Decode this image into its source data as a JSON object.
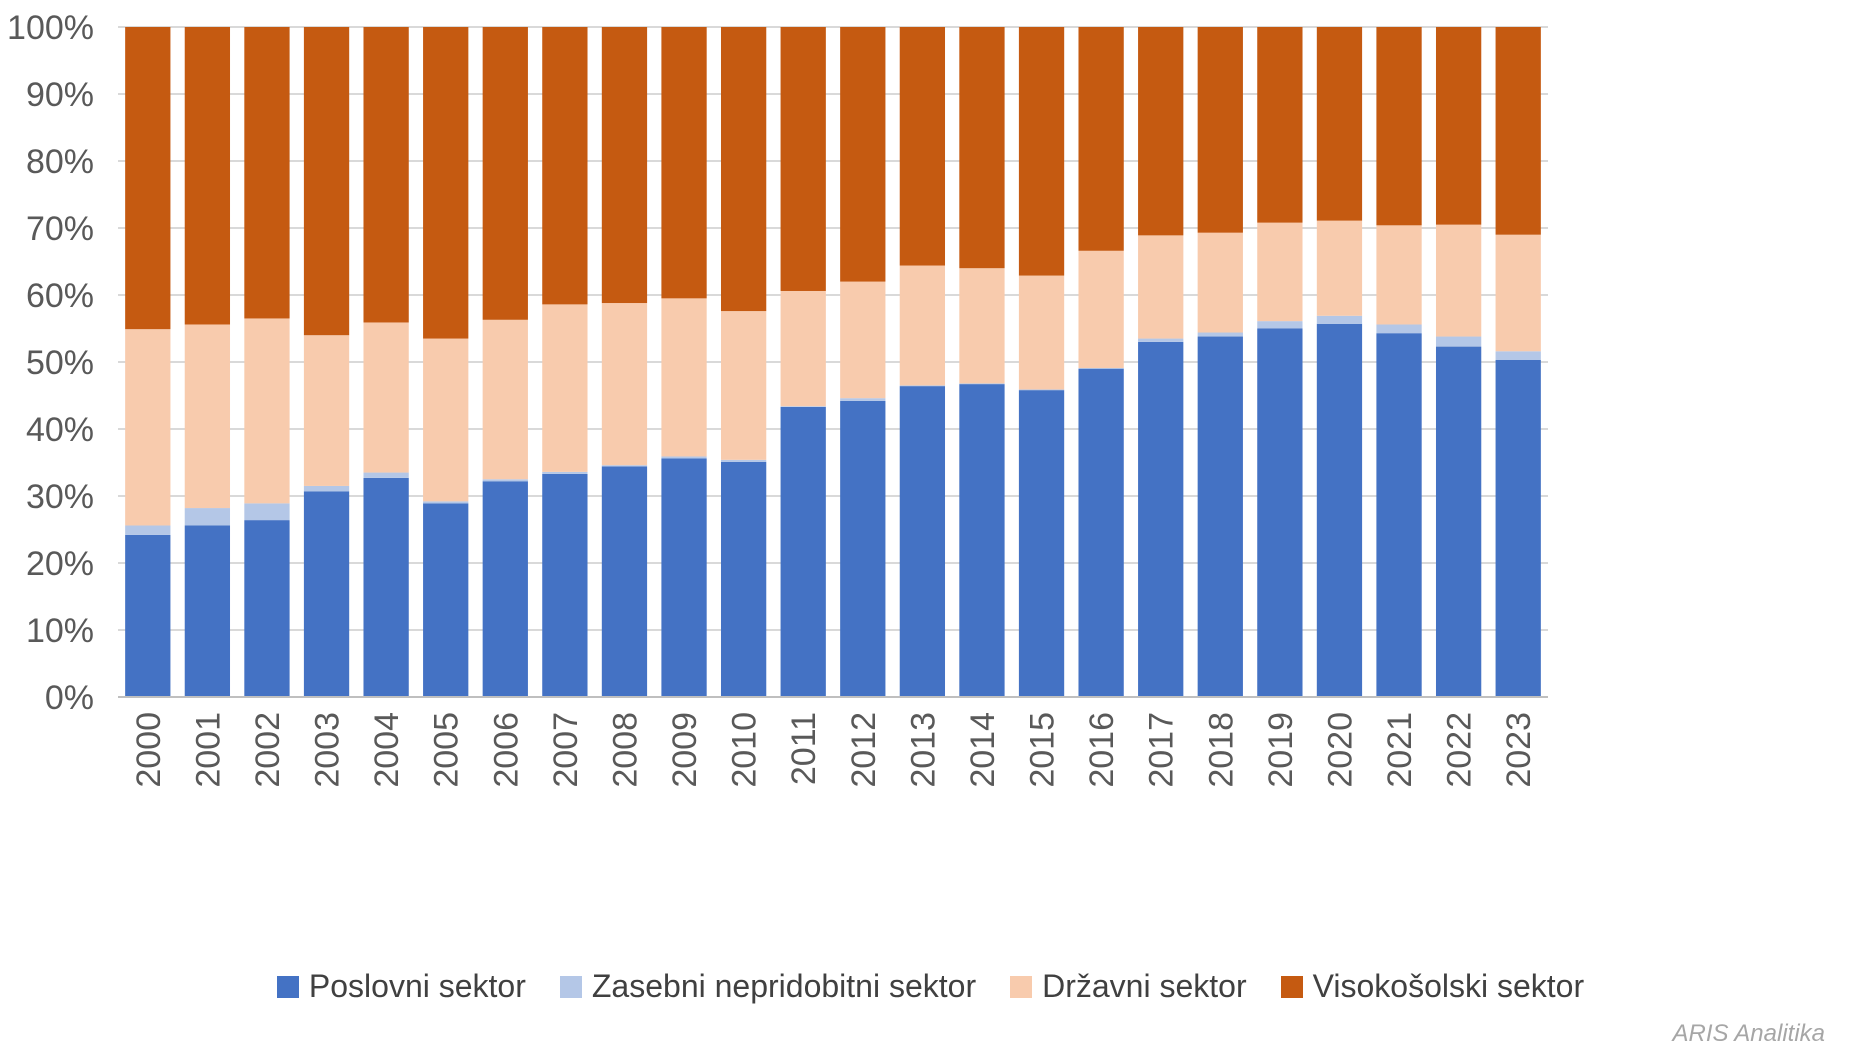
{
  "chart_data": {
    "type": "bar",
    "stacked": true,
    "percent_stacked": true,
    "title": "",
    "xlabel": "",
    "ylabel": "",
    "ylim": [
      0,
      100
    ],
    "y_ticks": [
      "0%",
      "10%",
      "20%",
      "30%",
      "40%",
      "50%",
      "60%",
      "70%",
      "80%",
      "90%",
      "100%"
    ],
    "grid": true,
    "legend_position": "bottom",
    "categories": [
      "2000",
      "2001",
      "2002",
      "2003",
      "2004",
      "2005",
      "2006",
      "2007",
      "2008",
      "2009",
      "2010",
      "2011",
      "2012",
      "2013",
      "2014",
      "2015",
      "2016",
      "2017",
      "2018",
      "2019",
      "2020",
      "2021",
      "2022",
      "2023"
    ],
    "series": [
      {
        "name": "Poslovni sektor",
        "color": "#4472c4",
        "values": [
          24.2,
          25.6,
          26.4,
          30.7,
          32.7,
          28.9,
          32.2,
          33.3,
          34.4,
          35.6,
          35.1,
          43.3,
          44.2,
          46.4,
          46.7,
          45.8,
          49.0,
          53.0,
          53.8,
          55.0,
          55.7,
          54.3,
          52.3,
          50.3
        ]
      },
      {
        "name": "Zasebni nepridobitni sektor",
        "color": "#b4c7e7",
        "values": [
          1.4,
          2.6,
          2.5,
          0.8,
          0.8,
          0.3,
          0.3,
          0.3,
          0.2,
          0.3,
          0.3,
          0.1,
          0.4,
          0.1,
          0.1,
          0.1,
          0.1,
          0.5,
          0.6,
          1.1,
          1.2,
          1.3,
          1.5,
          1.3
        ]
      },
      {
        "name": "Državni sektor",
        "color": "#f8cbad",
        "values": [
          29.3,
          27.4,
          27.6,
          22.5,
          22.4,
          24.3,
          23.8,
          25.0,
          24.2,
          23.6,
          22.2,
          17.2,
          17.4,
          17.9,
          17.2,
          17.0,
          17.5,
          15.4,
          14.9,
          14.7,
          14.2,
          14.8,
          16.7,
          17.4
        ]
      },
      {
        "name": "Visokošolski sektor",
        "color": "#c55a11",
        "values": [
          45.1,
          44.4,
          43.5,
          46.0,
          44.1,
          46.5,
          43.7,
          41.4,
          41.2,
          40.5,
          42.4,
          39.4,
          38.0,
          35.6,
          36.0,
          37.1,
          33.4,
          31.1,
          30.7,
          29.2,
          28.9,
          29.6,
          29.5,
          31.0
        ]
      }
    ]
  },
  "watermark": "ARIS Analitika"
}
